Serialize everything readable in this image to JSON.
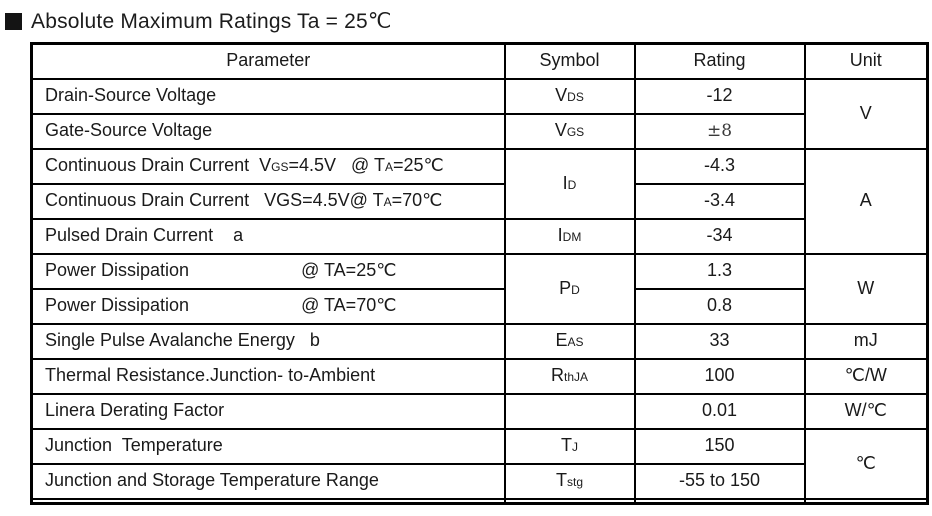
{
  "title": "Absolute Maximum Ratings Ta = 25℃",
  "table": {
    "headers": [
      "Parameter",
      "Symbol",
      "Rating",
      "Unit"
    ],
    "rows": [
      {
        "param": [
          {
            "t": "Drain-Source Voltage"
          }
        ],
        "sym": [
          {
            "t": "V"
          },
          {
            "s": "DS"
          }
        ],
        "rating": "-12",
        "unit": "V"
      },
      {
        "param": [
          {
            "t": "Gate-Source Voltage"
          }
        ],
        "sym": [
          {
            "t": "V"
          },
          {
            "s": "GS"
          }
        ],
        "rating": "±8"
      },
      {
        "param": [
          {
            "t": "Continuous Drain Current  V"
          },
          {
            "s": "GS"
          },
          {
            "t": "=4.5V   @ T"
          },
          {
            "s": "A"
          },
          {
            "t": "=25℃"
          }
        ],
        "sym": [
          {
            "t": "I"
          },
          {
            "s": "D"
          }
        ],
        "rating": "-4.3",
        "unit": "A"
      },
      {
        "param": [
          {
            "t": "Continuous Drain Current   VGS=4.5V@ T"
          },
          {
            "s": "A"
          },
          {
            "t": "=70℃"
          }
        ],
        "rating": "-3.4"
      },
      {
        "param": [
          {
            "t": "Pulsed Drain Current    a"
          }
        ],
        "sym": [
          {
            "t": "I"
          },
          {
            "s": "DM"
          }
        ],
        "rating": "-34"
      },
      {
        "param": [
          {
            "t": "Power Dissipation"
          },
          {
            "g": 112
          },
          {
            "t": "@ TA=25℃"
          }
        ],
        "sym": [
          {
            "t": "P"
          },
          {
            "s": "D"
          }
        ],
        "rating": "1.3",
        "unit": "W"
      },
      {
        "param": [
          {
            "t": "Power Dissipation"
          },
          {
            "g": 112
          },
          {
            "t": "@ TA=70℃"
          }
        ],
        "rating": "0.8"
      },
      {
        "param": [
          {
            "t": "Single Pulse Avalanche Energy   b"
          }
        ],
        "sym": [
          {
            "t": "E"
          },
          {
            "s": "AS"
          }
        ],
        "rating": "33",
        "unit": "mJ"
      },
      {
        "param": [
          {
            "t": "Thermal Resistance.Junction- to-Ambient"
          }
        ],
        "sym": [
          {
            "t": "R"
          },
          {
            "s": "thJA"
          }
        ],
        "rating": "100",
        "unit": "℃/W"
      },
      {
        "param": [
          {
            "t": "Linera Derating Factor"
          }
        ],
        "sym": [],
        "rating": "0.01",
        "unit": "W/℃"
      },
      {
        "param": [
          {
            "t": "Junction  Temperature"
          }
        ],
        "sym": [
          {
            "t": "T"
          },
          {
            "s": "J"
          }
        ],
        "rating": "150",
        "unit": "℃"
      },
      {
        "param": [
          {
            "t": "Junction and Storage Temperature Range"
          }
        ],
        "sym": [
          {
            "t": "T"
          },
          {
            "s": "stg"
          }
        ],
        "rating": "-55 to 150"
      }
    ]
  },
  "colors": {
    "border": "#000000",
    "text": "#1a1a1a",
    "background": "#ffffff"
  },
  "icons": {
    "title_bullet": "black-square-icon"
  }
}
